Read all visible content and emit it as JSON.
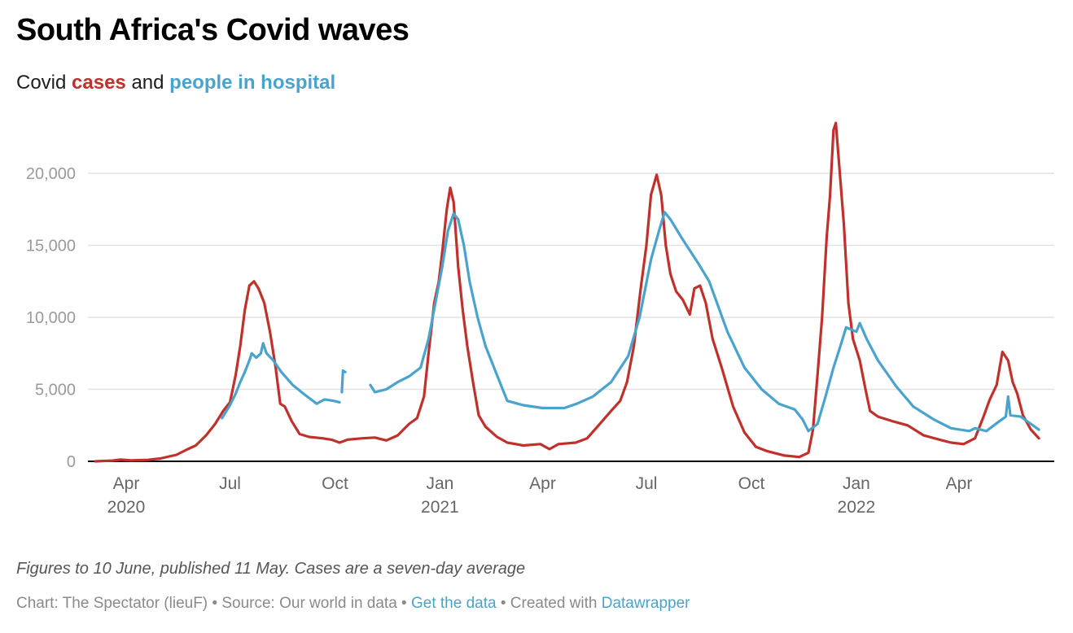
{
  "header": {
    "title": "South Africa's Covid waves",
    "subtitle_prefix": "Covid ",
    "subtitle_cases": "cases",
    "subtitle_and": " and ",
    "subtitle_hospital": "people in hospital"
  },
  "footer": {
    "note": "Figures to 10 June, published 11 May. Cases are a seven-day average",
    "credit_prefix": "Chart: The Spectator (lieuF) • Source: Our world in data • ",
    "get_data_link": "Get the data",
    "credit_mid": " • Created with ",
    "datawrapper_link": "Datawrapper"
  },
  "colors": {
    "cases": "#c0312b",
    "hospital": "#4aa3cd",
    "grid": "#e2e2e2",
    "axis": "#000000"
  },
  "chart_data": {
    "type": "line",
    "title": "South Africa's Covid waves",
    "subtitle": "Covid cases and people in hospital",
    "xlabel": "",
    "ylabel": "",
    "ylim": [
      0,
      23500
    ],
    "xlim": [
      "2020-03-05",
      "2022-06-10"
    ],
    "grid": true,
    "legend": "in-subtitle",
    "yticks": [
      {
        "value": 0,
        "label": "0"
      },
      {
        "value": 5000,
        "label": "5,000"
      },
      {
        "value": 10000,
        "label": "10,000"
      },
      {
        "value": 15000,
        "label": "15,000"
      },
      {
        "value": 20000,
        "label": "20,000"
      }
    ],
    "xticks": [
      {
        "date": "2020-04-01",
        "label": "Apr",
        "year": "2020"
      },
      {
        "date": "2020-07-01",
        "label": "Jul",
        "year": ""
      },
      {
        "date": "2020-10-01",
        "label": "Oct",
        "year": ""
      },
      {
        "date": "2021-01-01",
        "label": "Jan",
        "year": "2021"
      },
      {
        "date": "2021-04-01",
        "label": "Apr",
        "year": ""
      },
      {
        "date": "2021-07-01",
        "label": "Jul",
        "year": ""
      },
      {
        "date": "2021-10-01",
        "label": "Oct",
        "year": ""
      },
      {
        "date": "2022-01-01",
        "label": "Jan",
        "year": "2022"
      },
      {
        "date": "2022-04-01",
        "label": "Apr",
        "year": ""
      }
    ],
    "series": [
      {
        "name": "cases",
        "color": "#c0312b",
        "points": [
          [
            "2020-03-05",
            0
          ],
          [
            "2020-03-20",
            50
          ],
          [
            "2020-03-27",
            120
          ],
          [
            "2020-04-05",
            60
          ],
          [
            "2020-04-20",
            100
          ],
          [
            "2020-05-01",
            200
          ],
          [
            "2020-05-15",
            450
          ],
          [
            "2020-05-25",
            850
          ],
          [
            "2020-06-01",
            1100
          ],
          [
            "2020-06-10",
            1800
          ],
          [
            "2020-06-18",
            2600
          ],
          [
            "2020-06-25",
            3500
          ],
          [
            "2020-07-01",
            4100
          ],
          [
            "2020-07-06",
            6000
          ],
          [
            "2020-07-10",
            8000
          ],
          [
            "2020-07-14",
            10500
          ],
          [
            "2020-07-18",
            12200
          ],
          [
            "2020-07-22",
            12500
          ],
          [
            "2020-07-26",
            12000
          ],
          [
            "2020-07-31",
            11000
          ],
          [
            "2020-08-05",
            9000
          ],
          [
            "2020-08-10",
            6500
          ],
          [
            "2020-08-14",
            4000
          ],
          [
            "2020-08-18",
            3800
          ],
          [
            "2020-08-24",
            2800
          ],
          [
            "2020-08-31",
            1900
          ],
          [
            "2020-09-08",
            1700
          ],
          [
            "2020-09-20",
            1600
          ],
          [
            "2020-09-28",
            1500
          ],
          [
            "2020-10-05",
            1300
          ],
          [
            "2020-10-12",
            1500
          ],
          [
            "2020-10-25",
            1600
          ],
          [
            "2020-11-05",
            1650
          ],
          [
            "2020-11-15",
            1450
          ],
          [
            "2020-11-25",
            1800
          ],
          [
            "2020-12-05",
            2600
          ],
          [
            "2020-12-12",
            3000
          ],
          [
            "2020-12-18",
            4500
          ],
          [
            "2020-12-22",
            7500
          ],
          [
            "2020-12-27",
            11000
          ],
          [
            "2020-12-31",
            12500
          ],
          [
            "2021-01-03",
            14500
          ],
          [
            "2021-01-07",
            17500
          ],
          [
            "2021-01-10",
            19000
          ],
          [
            "2021-01-13",
            18000
          ],
          [
            "2021-01-17",
            13500
          ],
          [
            "2021-01-21",
            10500
          ],
          [
            "2021-01-25",
            8000
          ],
          [
            "2021-01-30",
            5500
          ],
          [
            "2021-02-04",
            3200
          ],
          [
            "2021-02-10",
            2400
          ],
          [
            "2021-02-20",
            1700
          ],
          [
            "2021-03-01",
            1300
          ],
          [
            "2021-03-15",
            1100
          ],
          [
            "2021-03-30",
            1200
          ],
          [
            "2021-04-07",
            850
          ],
          [
            "2021-04-15",
            1200
          ],
          [
            "2021-04-30",
            1300
          ],
          [
            "2021-05-10",
            1600
          ],
          [
            "2021-05-20",
            2500
          ],
          [
            "2021-05-31",
            3500
          ],
          [
            "2021-06-08",
            4200
          ],
          [
            "2021-06-14",
            5500
          ],
          [
            "2021-06-20",
            8000
          ],
          [
            "2021-06-26",
            12000
          ],
          [
            "2021-07-01",
            15000
          ],
          [
            "2021-07-05",
            18500
          ],
          [
            "2021-07-10",
            19900
          ],
          [
            "2021-07-14",
            18500
          ],
          [
            "2021-07-18",
            15000
          ],
          [
            "2021-07-22",
            13000
          ],
          [
            "2021-07-27",
            11800
          ],
          [
            "2021-08-02",
            11200
          ],
          [
            "2021-08-08",
            10200
          ],
          [
            "2021-08-12",
            12000
          ],
          [
            "2021-08-17",
            12200
          ],
          [
            "2021-08-22",
            11000
          ],
          [
            "2021-08-28",
            8500
          ],
          [
            "2021-09-05",
            6500
          ],
          [
            "2021-09-15",
            3800
          ],
          [
            "2021-09-25",
            2000
          ],
          [
            "2021-10-05",
            1000
          ],
          [
            "2021-10-15",
            700
          ],
          [
            "2021-10-30",
            400
          ],
          [
            "2021-11-12",
            300
          ],
          [
            "2021-11-20",
            600
          ],
          [
            "2021-11-24",
            2200
          ],
          [
            "2021-11-28",
            6000
          ],
          [
            "2021-12-02",
            10000
          ],
          [
            "2021-12-06",
            15500
          ],
          [
            "2021-12-09",
            18500
          ],
          [
            "2021-12-12",
            23000
          ],
          [
            "2021-12-14",
            23500
          ],
          [
            "2021-12-17",
            20500
          ],
          [
            "2021-12-21",
            16500
          ],
          [
            "2021-12-25",
            11000
          ],
          [
            "2021-12-29",
            8500
          ],
          [
            "2022-01-04",
            7000
          ],
          [
            "2022-01-09",
            5000
          ],
          [
            "2022-01-13",
            3500
          ],
          [
            "2022-01-20",
            3100
          ],
          [
            "2022-02-01",
            2800
          ],
          [
            "2022-02-15",
            2500
          ],
          [
            "2022-03-01",
            1800
          ],
          [
            "2022-03-15",
            1500
          ],
          [
            "2022-03-25",
            1300
          ],
          [
            "2022-04-05",
            1200
          ],
          [
            "2022-04-15",
            1600
          ],
          [
            "2022-04-22",
            3000
          ],
          [
            "2022-04-28",
            4300
          ],
          [
            "2022-05-04",
            5300
          ],
          [
            "2022-05-09",
            7600
          ],
          [
            "2022-05-14",
            7000
          ],
          [
            "2022-05-18",
            5500
          ],
          [
            "2022-05-22",
            4700
          ],
          [
            "2022-05-27",
            3200
          ],
          [
            "2022-06-03",
            2200
          ],
          [
            "2022-06-10",
            1600
          ]
        ]
      },
      {
        "name": "people in hospital",
        "color": "#4aa3cd",
        "points": [
          [
            "2020-06-24",
            3000
          ],
          [
            "2020-07-01",
            3900
          ],
          [
            "2020-07-06",
            4700
          ],
          [
            "2020-07-10",
            5500
          ],
          [
            "2020-07-14",
            6200
          ],
          [
            "2020-07-18",
            7000
          ],
          [
            "2020-07-20",
            7500
          ],
          [
            "2020-07-24",
            7200
          ],
          [
            "2020-07-28",
            7500
          ],
          [
            "2020-07-30",
            8200
          ],
          [
            "2020-08-02",
            7500
          ],
          [
            "2020-08-08",
            7000
          ],
          [
            "2020-08-15",
            6200
          ],
          [
            "2020-08-25",
            5300
          ],
          [
            "2020-09-05",
            4600
          ],
          [
            "2020-09-15",
            4000
          ],
          [
            "2020-09-22",
            4300
          ],
          [
            "2020-09-30",
            4200
          ],
          [
            "2020-10-05",
            4100
          ],
          null,
          [
            "2020-10-07",
            4800
          ],
          [
            "2020-10-08",
            6300
          ],
          [
            "2020-10-10",
            6200
          ],
          null,
          [
            "2020-11-01",
            5300
          ],
          [
            "2020-11-05",
            4800
          ],
          [
            "2020-11-15",
            5000
          ],
          [
            "2020-11-25",
            5500
          ],
          [
            "2020-12-05",
            5900
          ],
          [
            "2020-12-15",
            6500
          ],
          [
            "2020-12-22",
            8500
          ],
          [
            "2020-12-28",
            11000
          ],
          [
            "2021-01-03",
            13500
          ],
          [
            "2021-01-08",
            16000
          ],
          [
            "2021-01-13",
            17200
          ],
          [
            "2021-01-17",
            16800
          ],
          [
            "2021-01-22",
            15000
          ],
          [
            "2021-01-27",
            12500
          ],
          [
            "2021-02-03",
            10000
          ],
          [
            "2021-02-10",
            8000
          ],
          [
            "2021-02-20",
            6000
          ],
          [
            "2021-03-01",
            4200
          ],
          [
            "2021-03-15",
            3900
          ],
          [
            "2021-04-01",
            3700
          ],
          [
            "2021-04-20",
            3700
          ],
          [
            "2021-05-01",
            4000
          ],
          [
            "2021-05-15",
            4500
          ],
          [
            "2021-05-31",
            5500
          ],
          [
            "2021-06-15",
            7300
          ],
          [
            "2021-06-25",
            10000
          ],
          [
            "2021-07-05",
            14000
          ],
          [
            "2021-07-12",
            16000
          ],
          [
            "2021-07-17",
            17300
          ],
          [
            "2021-07-22",
            16800
          ],
          [
            "2021-08-01",
            15500
          ],
          [
            "2021-08-15",
            13800
          ],
          [
            "2021-08-25",
            12500
          ],
          [
            "2021-09-10",
            9000
          ],
          [
            "2021-09-25",
            6500
          ],
          [
            "2021-10-10",
            5000
          ],
          [
            "2021-10-25",
            4000
          ],
          [
            "2021-11-08",
            3600
          ],
          [
            "2021-11-15",
            2900
          ],
          [
            "2021-11-20",
            2100
          ],
          [
            "2021-11-28",
            2600
          ],
          [
            "2021-12-05",
            4500
          ],
          [
            "2021-12-12",
            6500
          ],
          [
            "2021-12-18",
            8000
          ],
          [
            "2021-12-23",
            9300
          ],
          [
            "2022-01-01",
            9000
          ],
          [
            "2022-01-04",
            9600
          ],
          [
            "2022-01-10",
            8500
          ],
          [
            "2022-01-20",
            7000
          ],
          [
            "2022-02-05",
            5200
          ],
          [
            "2022-02-20",
            3800
          ],
          [
            "2022-03-10",
            2900
          ],
          [
            "2022-03-25",
            2300
          ],
          [
            "2022-04-10",
            2100
          ],
          [
            "2022-04-15",
            2300
          ],
          [
            "2022-04-25",
            2100
          ],
          [
            "2022-05-05",
            2700
          ],
          [
            "2022-05-12",
            3100
          ],
          [
            "2022-05-14",
            4500
          ],
          [
            "2022-05-16",
            3200
          ],
          [
            "2022-05-25",
            3100
          ],
          [
            "2022-06-03",
            2600
          ],
          [
            "2022-06-10",
            2200
          ]
        ]
      }
    ]
  }
}
